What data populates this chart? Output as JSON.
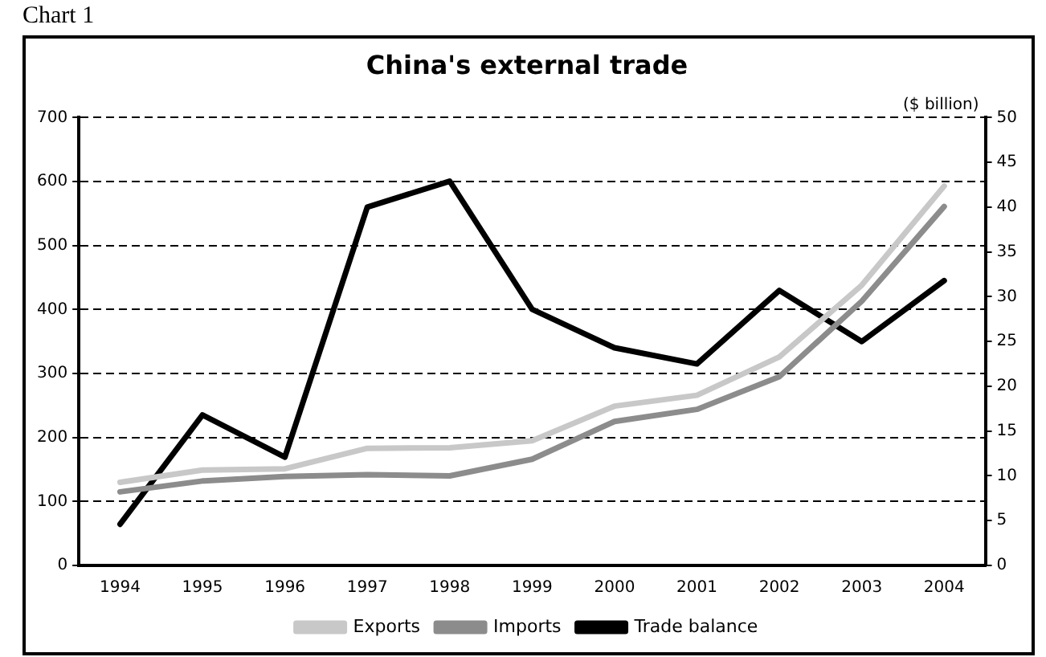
{
  "chart_data": {
    "type": "line",
    "title": "China's external trade",
    "y2label": "($ billion)",
    "annotations": [
      "Chart 1"
    ],
    "categories": [
      "1994",
      "1995",
      "1996",
      "1997",
      "1998",
      "1999",
      "2000",
      "2001",
      "2002",
      "2003",
      "2004"
    ],
    "series": [
      {
        "name": "Exports",
        "color": "#c8c8c8",
        "values": [
          130,
          149,
          151,
          183,
          184,
          195,
          249,
          266,
          326,
          438,
          593
        ]
      },
      {
        "name": "Imports",
        "color": "#8c8c8c",
        "values": [
          115,
          132,
          139,
          142,
          140,
          166,
          225,
          244,
          295,
          413,
          561
        ]
      },
      {
        "name": "Trade balance",
        "color": "#000000",
        "axis": "y2",
        "values": [
          4.6,
          16.8,
          12.1,
          40,
          42.9,
          28.6,
          24.3,
          22.5,
          30.7,
          25,
          31.8
        ]
      }
    ],
    "ylim": [
      0,
      700
    ],
    "yticks": [
      0,
      100,
      200,
      300,
      400,
      500,
      600,
      700
    ],
    "y2lim": [
      0,
      50
    ],
    "y2ticks": [
      0,
      5,
      10,
      15,
      20,
      25,
      30,
      35,
      40,
      45,
      50
    ],
    "grid": "y",
    "legend": "bottom",
    "marker": "none",
    "line_style": "solid"
  }
}
